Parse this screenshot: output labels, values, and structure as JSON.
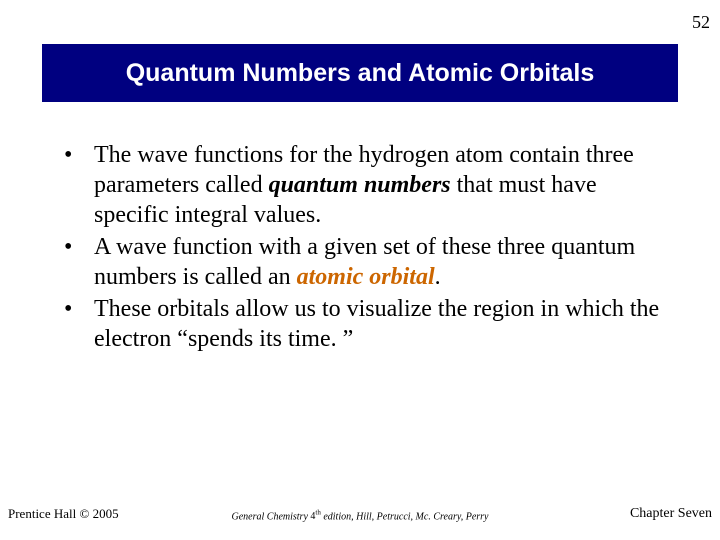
{
  "page_number": "52",
  "title": "Quantum Numbers and Atomic Orbitals",
  "bullets": [
    {
      "pre": "The wave functions for the hydrogen atom contain three parameters called ",
      "term": "quantum numbers",
      "term_class": "term1",
      "post": " that must have specific integral values."
    },
    {
      "pre": "A wave function with a given set of these three quantum numbers is called an ",
      "term": "atomic orbital",
      "term_class": "term2",
      "post": "."
    },
    {
      "pre": "These orbitals allow us to visualize the region in which the electron “spends its time. ”",
      "term": "",
      "term_class": "",
      "post": ""
    }
  ],
  "footer": {
    "left": "Prentice Hall © 2005",
    "center_title": "General Chemistry",
    "center_edition_num": "4",
    "center_edition_sup": "th",
    "center_rest": " edition, Hill, Petrucci, Mc. Creary, Perry",
    "right": "Chapter Seven"
  },
  "colors": {
    "title_bg": "#000080",
    "title_text": "#ffffff",
    "term2_color": "#cc6600",
    "body_text": "#000000",
    "background": "#ffffff"
  }
}
